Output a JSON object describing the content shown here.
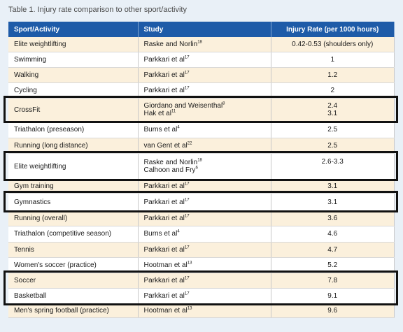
{
  "caption": "Table 1.  Injury rate comparison to other sport/activity",
  "headers": [
    "Sport/Activity",
    "Study",
    "Injury Rate (per 1000 hours)"
  ],
  "rows": [
    {
      "activity": "Elite weightlifting",
      "study": [
        {
          "t": "Raske and Norlin",
          "s": "18"
        }
      ],
      "rate": [
        "0.42-0.53 (shoulders only)"
      ],
      "h": 21
    },
    {
      "activity": "Swimming",
      "study": [
        {
          "t": "Parkkari et al",
          "s": "17"
        }
      ],
      "rate": [
        "1"
      ],
      "h": 22
    },
    {
      "activity": "Walking",
      "study": [
        {
          "t": "Parkkari et al",
          "s": "17"
        }
      ],
      "rate": [
        "1.2"
      ],
      "h": 22
    },
    {
      "activity": "Cycling",
      "study": [
        {
          "t": "Parkkari et al",
          "s": "17"
        }
      ],
      "rate": [
        "2"
      ],
      "h": 22
    },
    {
      "activity": "CrossFit",
      "study": [
        {
          "t": "Giordano and Weisenthal",
          "s": "8"
        },
        {
          "t": "Hak et al",
          "s": "11"
        }
      ],
      "rate": [
        "2.4",
        "3.1"
      ],
      "h": 34
    },
    {
      "activity": "Triathalon (preseason)",
      "study": [
        {
          "t": "Burns et al",
          "s": "4"
        }
      ],
      "rate": [
        "2.5"
      ],
      "h": 23
    },
    {
      "activity": "Running (long distance)",
      "study": [
        {
          "t": "van Gent et al",
          "s": "22"
        }
      ],
      "rate": [
        "2.5"
      ],
      "h": 22
    },
    {
      "activity": "Elite weightlifting",
      "study": [
        {
          "t": "Raske and Norlin",
          "s": "18"
        },
        {
          "t": "Calhoon and Fry",
          "s": "6"
        }
      ],
      "rate": [
        "2.6-3.3",
        ""
      ],
      "h": 38
    },
    {
      "activity": "Gym training",
      "study": [
        {
          "t": "Parkkari et al",
          "s": "17"
        }
      ],
      "rate": [
        "3.1"
      ],
      "h": 19
    },
    {
      "activity": "Gymnastics",
      "study": [
        {
          "t": "Parkkari et al",
          "s": "17"
        }
      ],
      "rate": [
        "3.1"
      ],
      "h": 26
    },
    {
      "activity": "Running (overall)",
      "study": [
        {
          "t": "Parkkari et al",
          "s": "17"
        }
      ],
      "rate": [
        "3.6"
      ],
      "h": 21
    },
    {
      "activity": "Triathalon (competitive season)",
      "study": [
        {
          "t": "Burns et al",
          "s": "4"
        }
      ],
      "rate": [
        "4.6"
      ],
      "h": 23
    },
    {
      "activity": "Tennis",
      "study": [
        {
          "t": "Parkkari et al",
          "s": "17"
        }
      ],
      "rate": [
        "4.7"
      ],
      "h": 22
    },
    {
      "activity": "Women's soccer (practice)",
      "study": [
        {
          "t": "Hootman et al",
          "s": "13"
        }
      ],
      "rate": [
        "5.2"
      ],
      "h": 22
    },
    {
      "activity": "Soccer",
      "study": [
        {
          "t": "Parkkari et al",
          "s": "17"
        }
      ],
      "rate": [
        "7.8"
      ],
      "h": 22
    },
    {
      "activity": "Basketball",
      "study": [
        {
          "t": "Parkkari et al",
          "s": "17"
        }
      ],
      "rate": [
        "9.1"
      ],
      "h": 23
    },
    {
      "activity": "Men's spring football (practice)",
      "study": [
        {
          "t": "Hootman et al",
          "s": "13"
        }
      ],
      "rate": [
        "9.6"
      ],
      "h": 19
    }
  ],
  "highlight_groups": [
    [
      4
    ],
    [
      7
    ],
    [
      9
    ],
    [
      14,
      15
    ]
  ]
}
